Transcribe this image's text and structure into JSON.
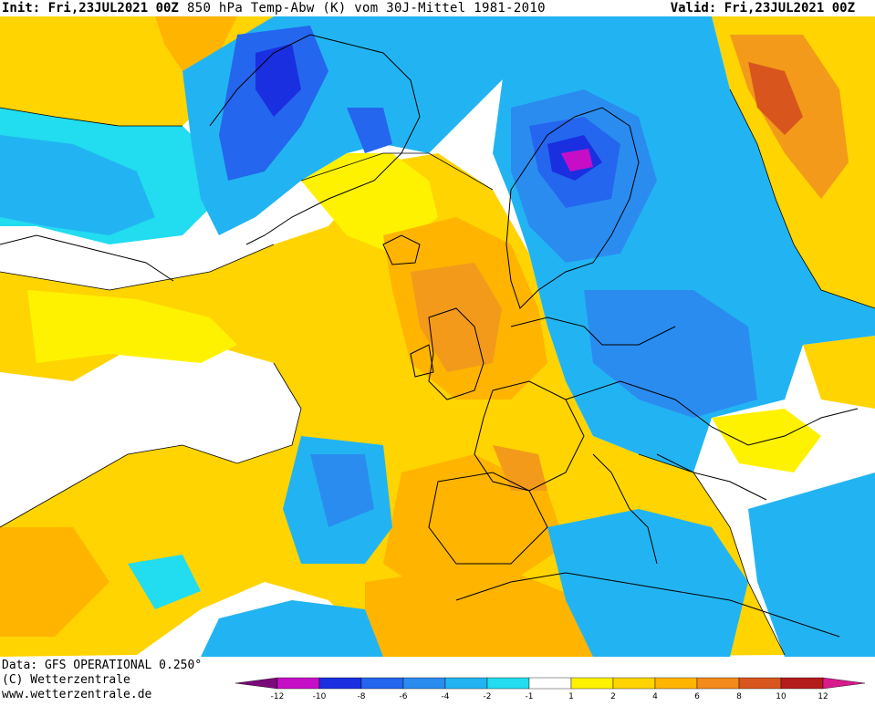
{
  "header": {
    "init": "Init: Fri,23JUL2021 00Z",
    "title": "850 hPa Temp-Abw (K) vom 30J-Mittel 1981-2010",
    "valid": "Valid: Fri,23JUL2021 00Z"
  },
  "footer": {
    "data_source": "Data: GFS OPERATIONAL 0.250°",
    "copyright": "(C) Wetterzentrale",
    "website": "www.wetterzentrale.de"
  },
  "legend": {
    "tick_labels": [
      "-12",
      "-10",
      "-8",
      "-6",
      "-4",
      "-2",
      "-1",
      "1",
      "2",
      "4",
      "6",
      "8",
      "10",
      "12"
    ],
    "colors": [
      "#7a0a7a",
      "#c70ec7",
      "#1a2fe0",
      "#2466ee",
      "#2b8cf0",
      "#22b4f2",
      "#22dcef",
      "#ffffff",
      "#fff200",
      "#ffd400",
      "#ffb400",
      "#f38a1a",
      "#d8561e",
      "#b41c1c",
      "#d81a8c"
    ]
  },
  "colors": {
    "ocean_neutral": "#ffffff",
    "positive_light": "#fff200",
    "positive_mid": "#ffd400",
    "positive_strong": "#f39a1a",
    "negative_light": "#22dcef",
    "negative_mid": "#2b8cf0",
    "negative_strong": "#1a2fe0",
    "extreme_cold": "#c70ec7",
    "coastline": "#000000"
  }
}
